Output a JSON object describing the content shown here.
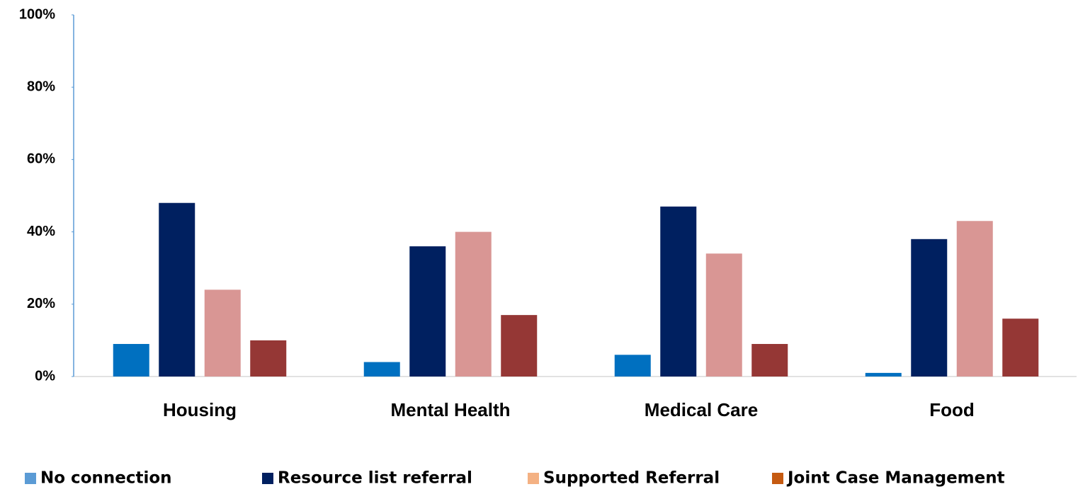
{
  "chart_data": {
    "type": "bar",
    "categories": [
      "Housing",
      "Mental Health",
      "Medical Care",
      "Food"
    ],
    "series": [
      {
        "name": "No connection",
        "color": "#0070c0",
        "legend_color": "#5b9bd5",
        "values": [
          9,
          4,
          6,
          1
        ]
      },
      {
        "name": "Resource list referral",
        "color": "#002060",
        "legend_color": "#002060",
        "values": [
          48,
          36,
          47,
          38
        ]
      },
      {
        "name": "Supported Referral",
        "color": "#d99694",
        "legend_color": "#f4b183",
        "values": [
          24,
          40,
          34,
          43
        ]
      },
      {
        "name": "Joint Case Management",
        "color": "#953735",
        "legend_color": "#c55a11",
        "values": [
          10,
          17,
          9,
          16
        ]
      }
    ],
    "ylim": [
      0,
      100
    ],
    "yticks": [
      {
        "value": 0,
        "label": "0%"
      },
      {
        "value": 20,
        "label": "20%"
      },
      {
        "value": 40,
        "label": "40%"
      },
      {
        "value": 60,
        "label": "60%"
      },
      {
        "value": 80,
        "label": "80%"
      },
      {
        "value": 100,
        "label": "100%"
      }
    ],
    "grid": false,
    "legend": "bottom"
  }
}
